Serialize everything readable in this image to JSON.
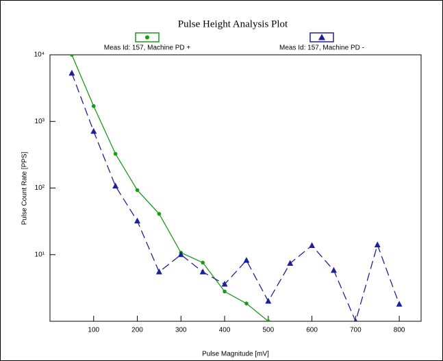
{
  "chart_data": {
    "type": "line",
    "title": "Pulse Height Analysis Plot",
    "x_label": "Pulse Magnitude [mV]",
    "y_label": "Pulse Count Rate [PPS]",
    "x": [
      50,
      100,
      150,
      200,
      250,
      300,
      350,
      400,
      450,
      500,
      550,
      600,
      650,
      700,
      750,
      800
    ],
    "series": [
      {
        "name": "Meas Id: 157, Machine PD +",
        "color": "#1a9a1a",
        "marker": "circle",
        "dash": false,
        "values": [
          10000,
          1700,
          326,
          93,
          41,
          10.7,
          7.6,
          2.8,
          1.85,
          1.0,
          null,
          null,
          null,
          null,
          null,
          null
        ]
      },
      {
        "name": "Meas Id: 157, Machine PD -",
        "color": "#1f1f9a",
        "marker": "triangle",
        "dash": true,
        "values": [
          5300,
          710,
          107,
          32,
          5.5,
          10,
          5.5,
          3.6,
          8.2,
          2.0,
          7.4,
          13.7,
          5.8,
          1.0,
          14,
          1.8
        ]
      }
    ],
    "xlim": [
      0,
      850
    ],
    "xticks": [
      100,
      200,
      300,
      400,
      500,
      600,
      700,
      800
    ],
    "ylim": [
      1,
      10000
    ],
    "log_y": true,
    "yticks": [
      {
        "value": 10,
        "label": "10¹"
      },
      {
        "value": 100,
        "label": "10²"
      },
      {
        "value": 1000,
        "label": "10³"
      },
      {
        "value": 10000,
        "label": "10⁴"
      }
    ]
  }
}
